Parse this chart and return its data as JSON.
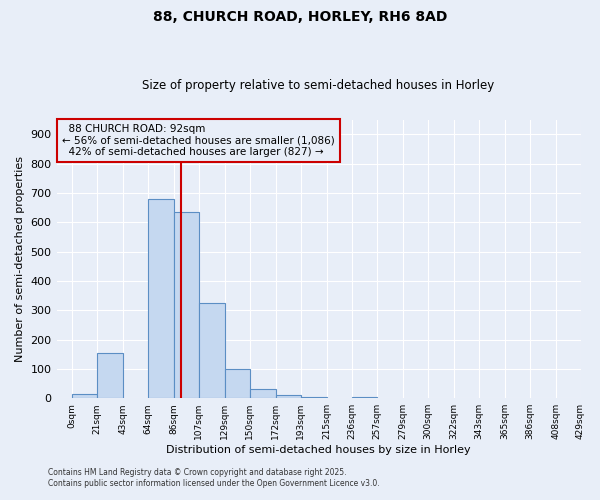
{
  "title": "88, CHURCH ROAD, HORLEY, RH6 8AD",
  "subtitle": "Size of property relative to semi-detached houses in Horley",
  "xlabel": "Distribution of semi-detached houses by size in Horley",
  "ylabel": "Number of semi-detached properties",
  "bin_edges": [
    0,
    21,
    43,
    64,
    86,
    107,
    129,
    150,
    172,
    193,
    215,
    236,
    257,
    279,
    300,
    322,
    343,
    365,
    386,
    408,
    429
  ],
  "bar_heights": [
    14,
    155,
    0,
    680,
    635,
    325,
    100,
    30,
    10,
    5,
    0,
    5,
    0,
    0,
    0,
    0,
    0,
    0,
    0,
    0
  ],
  "bar_color": "#c5d8f0",
  "bar_edge_color": "#5b8ec4",
  "property_size": 92,
  "property_label": "88 CHURCH ROAD: 92sqm",
  "pct_smaller": 56,
  "pct_larger": 42,
  "count_smaller": 1086,
  "count_larger": 827,
  "annotation_box_color": "#cc0000",
  "vline_color": "#cc0000",
  "ylim": [
    0,
    950
  ],
  "yticks": [
    0,
    100,
    200,
    300,
    400,
    500,
    600,
    700,
    800,
    900
  ],
  "background_color": "#e8eef8",
  "grid_color": "#ffffff",
  "footer1": "Contains HM Land Registry data © Crown copyright and database right 2025.",
  "footer2": "Contains public sector information licensed under the Open Government Licence v3.0."
}
